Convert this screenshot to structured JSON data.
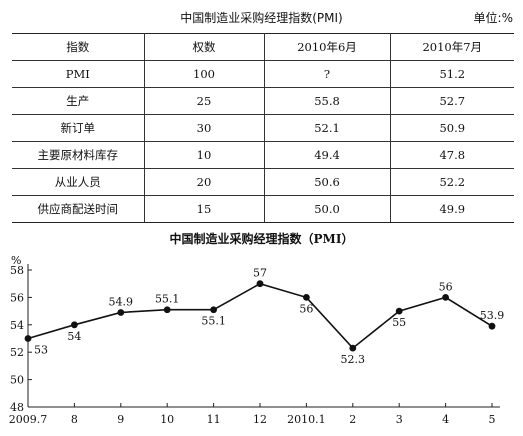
{
  "table": {
    "title": "中国制造业采购经理指数(PMI)",
    "unit": "单位:%",
    "headers": [
      "指数",
      "权数",
      "2010年6月",
      "2010年7月"
    ],
    "rows": [
      [
        "PMI",
        "100",
        "?",
        "51.2"
      ],
      [
        "生产",
        "25",
        "55.8",
        "52.7"
      ],
      [
        "新订单",
        "30",
        "52.1",
        "50.9"
      ],
      [
        "主要原材料库存",
        "10",
        "49.4",
        "47.8"
      ],
      [
        "从业人员",
        "20",
        "50.6",
        "52.2"
      ],
      [
        "供应商配送时间",
        "15",
        "50.0",
        "49.9"
      ]
    ]
  },
  "chart_data": {
    "type": "line",
    "title": "中国制造业采购经理指数（PMI）",
    "ylabel": "%",
    "xlabel": "",
    "categories": [
      "2009.7",
      "8",
      "9",
      "10",
      "11",
      "12",
      "2010.1",
      "2",
      "3",
      "4",
      "5"
    ],
    "series": [
      {
        "values": [
          53,
          54,
          54.9,
          55.1,
          55.1,
          57,
          56,
          52.3,
          55,
          56,
          53.9
        ]
      }
    ],
    "data_labels": [
      "53",
      "54",
      "54.9",
      "55.1",
      "55.1",
      "57",
      "56",
      "52.3",
      "55",
      "56",
      "53.9"
    ],
    "yticks": [
      "48",
      "50",
      "52",
      "54",
      "56",
      "58"
    ],
    "ylim": [
      48,
      58
    ],
    "grid": false,
    "legend": "none",
    "colors": {
      "line": "#111111",
      "marker": "#111111",
      "axis": "#222222"
    }
  }
}
